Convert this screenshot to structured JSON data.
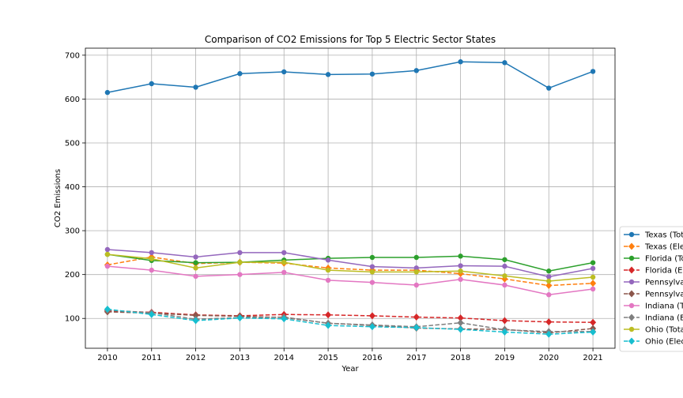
{
  "chart_data": {
    "type": "line",
    "title": "Comparison of CO2 Emissions for Top 5 Electric Sector States",
    "xlabel": "Year",
    "ylabel": "CO2 Emissions",
    "x": [
      2010,
      2011,
      2012,
      2013,
      2014,
      2015,
      2016,
      2017,
      2018,
      2019,
      2020,
      2021
    ],
    "xlim": [
      2009.5,
      2021.5
    ],
    "ylim": [
      32,
      716
    ],
    "yticks": [
      100,
      200,
      300,
      400,
      500,
      600,
      700
    ],
    "grid": true,
    "legend_position": "right",
    "series": [
      {
        "name": "Texas (Total)",
        "color": "#1f77b4",
        "dashed": false,
        "marker": "circle",
        "values": [
          615,
          635,
          627,
          658,
          662,
          656,
          657,
          665,
          685,
          683,
          625,
          663
        ]
      },
      {
        "name": "Texas (Electric)",
        "color": "#ff7f0e",
        "dashed": true,
        "marker": "diamond",
        "values": [
          222,
          240,
          225,
          228,
          226,
          215,
          210,
          210,
          202,
          190,
          175,
          180
        ]
      },
      {
        "name": "Florida (Total)",
        "color": "#2ca02c",
        "dashed": false,
        "marker": "circle",
        "values": [
          246,
          232,
          227,
          228,
          233,
          237,
          239,
          239,
          242,
          234,
          208,
          227
        ]
      },
      {
        "name": "Florida (Electric)",
        "color": "#d62728",
        "dashed": true,
        "marker": "diamond",
        "values": [
          117,
          114,
          108,
          106,
          109,
          108,
          106,
          103,
          101,
          95,
          92,
          91
        ]
      },
      {
        "name": "Pennsylvania (Total)",
        "color": "#9467bd",
        "dashed": false,
        "marker": "circle",
        "values": [
          257,
          250,
          240,
          250,
          250,
          233,
          218,
          215,
          220,
          219,
          195,
          214
        ]
      },
      {
        "name": "Pennsylvania (Electric)",
        "color": "#8c564b",
        "dashed": true,
        "marker": "diamond",
        "values": [
          115,
          112,
          107,
          105,
          102,
          89,
          84,
          78,
          76,
          75,
          67,
          77
        ]
      },
      {
        "name": "Indiana (Total)",
        "color": "#e377c2",
        "dashed": false,
        "marker": "circle",
        "values": [
          219,
          210,
          196,
          200,
          205,
          187,
          182,
          176,
          189,
          176,
          154,
          167
        ]
      },
      {
        "name": "Indiana (Electric)",
        "color": "#7f7f7f",
        "dashed": true,
        "marker": "diamond",
        "values": [
          119,
          113,
          98,
          102,
          103,
          89,
          85,
          81,
          90,
          74,
          70,
          70
        ]
      },
      {
        "name": "Ohio (Total)",
        "color": "#bcbd22",
        "dashed": false,
        "marker": "circle",
        "values": [
          246,
          236,
          215,
          228,
          228,
          210,
          206,
          206,
          208,
          197,
          185,
          194
        ]
      },
      {
        "name": "Ohio (Electric)",
        "color": "#17becf",
        "dashed": true,
        "marker": "diamond",
        "values": [
          121,
          109,
          95,
          101,
          99,
          84,
          81,
          79,
          75,
          69,
          64,
          69
        ]
      }
    ]
  }
}
